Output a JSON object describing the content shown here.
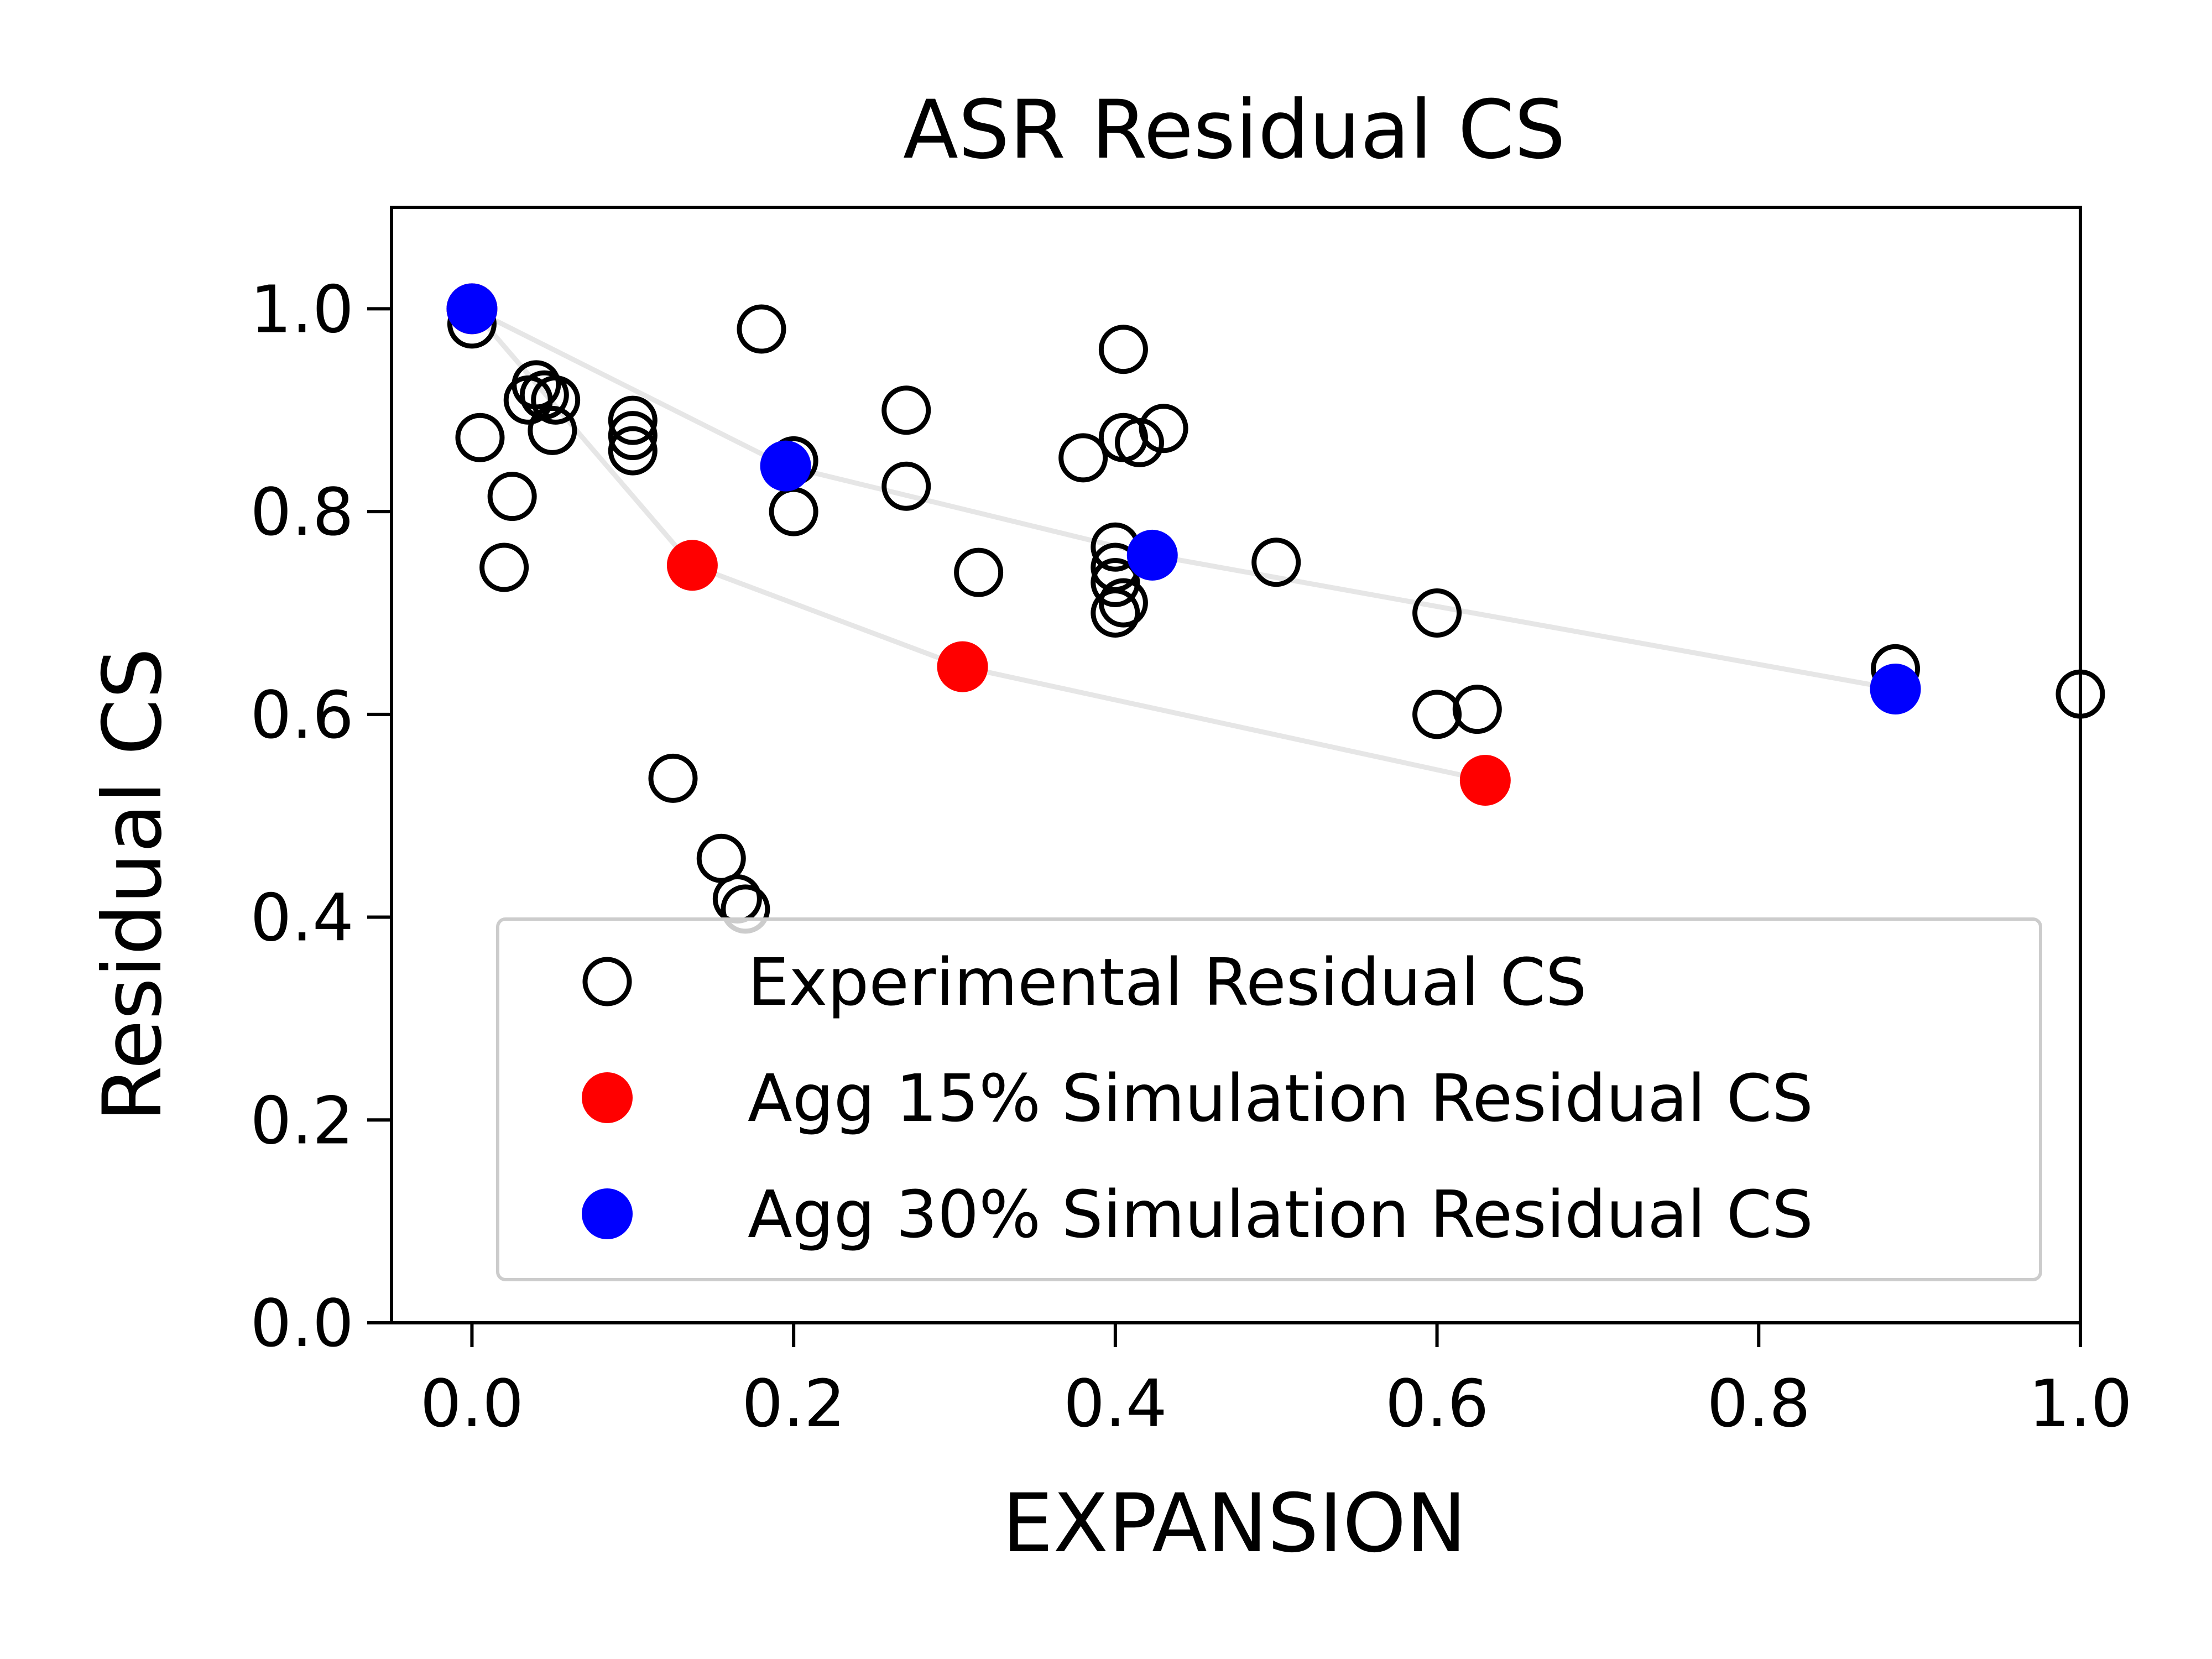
{
  "chart_data": {
    "type": "scatter",
    "title": "ASR Residual CS",
    "xlabel": "EXPANSION",
    "ylabel": "Residual CS",
    "xlim": [
      -0.05,
      1.0
    ],
    "ylim": [
      0.0,
      1.1
    ],
    "x_ticks": [
      "0.0",
      "0.2",
      "0.4",
      "0.6",
      "0.8",
      "1.0"
    ],
    "y_ticks": [
      "0.0",
      "0.2",
      "0.4",
      "0.6",
      "0.8",
      "1.0"
    ],
    "x_tick_values": [
      0.0,
      0.2,
      0.4,
      0.6,
      0.8,
      1.0
    ],
    "y_tick_values": [
      0.0,
      0.2,
      0.4,
      0.6,
      0.8,
      1.0
    ],
    "grid": false,
    "legend_position": "lower-right",
    "series": [
      {
        "name": "Experimental Residual CS",
        "style": "open-circle",
        "color": "#000000",
        "connected": false,
        "points": [
          [
            0.0,
            0.985
          ],
          [
            0.005,
            0.873
          ],
          [
            0.02,
            0.745
          ],
          [
            0.025,
            0.815
          ],
          [
            0.035,
            0.91
          ],
          [
            0.04,
            0.925
          ],
          [
            0.045,
            0.915
          ],
          [
            0.05,
            0.88
          ],
          [
            0.052,
            0.91
          ],
          [
            0.1,
            0.89
          ],
          [
            0.1,
            0.875
          ],
          [
            0.1,
            0.86
          ],
          [
            0.125,
            0.537
          ],
          [
            0.155,
            0.458
          ],
          [
            0.165,
            0.418
          ],
          [
            0.17,
            0.408
          ],
          [
            0.18,
            0.98
          ],
          [
            0.2,
            0.85
          ],
          [
            0.2,
            0.8
          ],
          [
            0.27,
            0.9
          ],
          [
            0.27,
            0.825
          ],
          [
            0.315,
            0.74
          ],
          [
            0.38,
            0.853
          ],
          [
            0.4,
            0.765
          ],
          [
            0.4,
            0.745
          ],
          [
            0.4,
            0.73
          ],
          [
            0.4,
            0.7
          ],
          [
            0.405,
            0.71
          ],
          [
            0.405,
            0.96
          ],
          [
            0.405,
            0.873
          ],
          [
            0.415,
            0.868
          ],
          [
            0.43,
            0.882
          ],
          [
            0.5,
            0.75
          ],
          [
            0.6,
            0.7
          ],
          [
            0.6,
            0.6
          ],
          [
            0.625,
            0.605
          ],
          [
            0.885,
            0.645
          ],
          [
            1.0,
            0.62
          ]
        ]
      },
      {
        "name": "Agg 15% Simulation Residual CS",
        "style": "filled-circle",
        "color": "#ff0000",
        "line_color": "#e6e6e6",
        "connected": true,
        "points": [
          [
            0.0,
            1.0
          ],
          [
            0.137,
            0.747
          ],
          [
            0.305,
            0.647
          ],
          [
            0.63,
            0.535
          ]
        ]
      },
      {
        "name": "Agg 30% Simulation Residual CS",
        "style": "filled-circle",
        "color": "#0000ff",
        "line_color": "#e6e6e6",
        "connected": true,
        "points": [
          [
            0.0,
            1.0
          ],
          [
            0.195,
            0.845
          ],
          [
            0.423,
            0.757
          ],
          [
            0.885,
            0.625
          ]
        ]
      }
    ]
  }
}
